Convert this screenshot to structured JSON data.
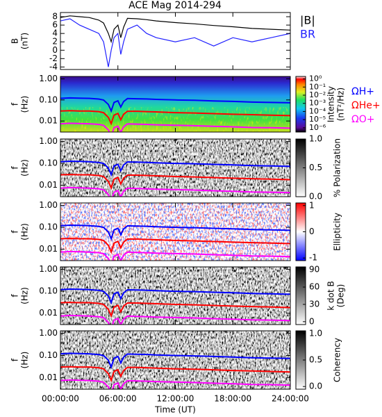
{
  "chart_data": [
    {
      "type": "line",
      "title": "ACE Mag 2014-294",
      "ylabel": [
        "B",
        "(nT)"
      ],
      "x": [
        0,
        1,
        2,
        3,
        4,
        4.5,
        5,
        5.3,
        5.6,
        6,
        6.3,
        6.6,
        7,
        8,
        9,
        10,
        12,
        14,
        16,
        18,
        20,
        22,
        24
      ],
      "series": [
        {
          "name": "|B|",
          "color": "#000000",
          "values": [
            7.8,
            8.2,
            8,
            7.8,
            7.2,
            6.5,
            4,
            2,
            5,
            6,
            3,
            5.5,
            7.6,
            7.5,
            7.3,
            7,
            6.6,
            6.3,
            5.9,
            5.6,
            5.2,
            5,
            4.8
          ]
        },
        {
          "name": "BR",
          "color": "#2020ff",
          "values": [
            7,
            7.5,
            6,
            5,
            4,
            2,
            -4,
            0,
            3,
            4,
            -1,
            2,
            5,
            6,
            4,
            3,
            2,
            3,
            1,
            3,
            2,
            3,
            4
          ]
        }
      ],
      "xlim": [
        0,
        24
      ],
      "xticks": [
        0,
        6,
        12,
        18,
        24
      ],
      "ylim": [
        -4.6,
        9
      ],
      "yticks": [
        -4,
        -2,
        0,
        2,
        4,
        6,
        8
      ]
    },
    {
      "type": "spectrogram",
      "colormap": "rainbow",
      "ylabel": [
        "f",
        "(Hz)"
      ],
      "yscale": "log",
      "ylim": [
        0.003,
        1.3
      ],
      "yticks": [
        {
          "value": 1,
          "label": "1.00"
        },
        {
          "value": 0.1,
          "label": "0.10"
        },
        0.01
      ],
      "xlim": [
        0,
        24
      ],
      "xticks": [
        0,
        6,
        12,
        18,
        24
      ],
      "x": [
        0,
        1,
        2,
        3,
        4,
        4.5,
        5,
        5.3,
        5.6,
        6,
        6.3,
        6.6,
        7,
        8,
        9,
        10,
        12,
        14,
        16,
        18,
        20,
        22,
        24
      ],
      "series": [
        {
          "name": "ΩH+",
          "color": "#0000ff",
          "values": [
            0.119,
            0.125,
            0.122,
            0.119,
            0.11,
            0.099,
            0.061,
            0.03,
            0.076,
            0.091,
            0.046,
            0.084,
            0.116,
            0.114,
            0.111,
            0.106,
            0.1,
            0.096,
            0.09,
            0.085,
            0.079,
            0.076,
            0.073
          ]
        },
        {
          "name": "ΩHe+",
          "color": "#ff0000",
          "values": [
            0.03,
            0.031,
            0.03,
            0.03,
            0.028,
            0.025,
            0.015,
            0.0075,
            0.019,
            0.023,
            0.0115,
            0.021,
            0.029,
            0.029,
            0.028,
            0.027,
            0.025,
            0.024,
            0.0225,
            0.021,
            0.02,
            0.019,
            0.018
          ]
        },
        {
          "name": "ΩO+",
          "color": "#ff00ff",
          "values": [
            0.0074,
            0.0078,
            0.0076,
            0.0074,
            0.0069,
            0.0062,
            0.0038,
            0.0019,
            0.0048,
            0.0057,
            0.0029,
            0.0053,
            0.0073,
            0.0071,
            0.0069,
            0.0066,
            0.0063,
            0.006,
            0.0056,
            0.0053,
            0.0049,
            0.0048,
            0.0046
          ]
        }
      ],
      "colorbar": {
        "label": [
          "Intensity",
          "(nT²/Hz)"
        ],
        "scale": "log",
        "lim": [
          3e-07,
          2
        ],
        "ticks": [
          {
            "value": 1,
            "label": "10⁰"
          },
          {
            "value": 0.1,
            "label": "10⁻¹"
          },
          {
            "value": 0.01,
            "label": "10⁻²"
          },
          {
            "value": 0.001,
            "label": "10⁻³"
          },
          {
            "value": 0.0001,
            "label": "10⁻⁴"
          },
          {
            "value": 1e-05,
            "label": "10⁻⁵"
          },
          {
            "value": 1e-06,
            "label": "10⁻⁶"
          }
        ]
      }
    },
    {
      "type": "spectrogram",
      "colormap": "gray",
      "ylabel": [
        "f",
        "(Hz)"
      ],
      "yscale": "log",
      "ylim": [
        0.003,
        1.3
      ],
      "yticks": [
        {
          "value": 1,
          "label": "1.00"
        },
        {
          "value": 0.1,
          "label": "0.10"
        },
        0.01
      ],
      "xlim": [
        0,
        24
      ],
      "xticks": [
        0,
        6,
        12,
        18,
        24
      ],
      "colorbar": {
        "label": [
          "% Polarization"
        ],
        "lim": [
          0,
          1
        ],
        "ticks": [
          {
            "value": 0,
            "label": "0.0"
          },
          0.5,
          {
            "value": 1,
            "label": "1.0"
          }
        ]
      }
    },
    {
      "type": "spectrogram",
      "colormap": "red-blue",
      "ylabel": [
        "f",
        "(Hz)"
      ],
      "yscale": "log",
      "ylim": [
        0.003,
        1.3
      ],
      "yticks": [
        {
          "value": 1,
          "label": "1.00"
        },
        {
          "value": 0.1,
          "label": "0.10"
        },
        0.01
      ],
      "xlim": [
        0,
        24
      ],
      "xticks": [
        0,
        6,
        12,
        18,
        24
      ],
      "colorbar": {
        "label": [
          "Ellipticity"
        ],
        "lim": [
          -1.1,
          1.1
        ],
        "ticks": [
          -1,
          0,
          1
        ]
      }
    },
    {
      "type": "spectrogram",
      "colormap": "gray",
      "ylabel": [
        "f",
        "(Hz)"
      ],
      "yscale": "log",
      "ylim": [
        0.003,
        1.3
      ],
      "yticks": [
        {
          "value": 1,
          "label": "1.00"
        },
        {
          "value": 0.1,
          "label": "0.10"
        },
        0.01
      ],
      "xlim": [
        0,
        24
      ],
      "xticks": [
        0,
        6,
        12,
        18,
        24
      ],
      "colorbar": {
        "label": [
          "k dot B",
          "(Deg)"
        ],
        "lim": [
          -5,
          95
        ],
        "ticks": [
          0,
          30,
          60,
          90
        ]
      }
    },
    {
      "type": "spectrogram",
      "colormap": "gray",
      "ylabel": [
        "f",
        "(Hz)"
      ],
      "yscale": "log",
      "ylim": [
        0.003,
        1.3
      ],
      "yticks": [
        {
          "value": 1,
          "label": "1.00"
        },
        {
          "value": 0.1,
          "label": "0.10"
        },
        0.01
      ],
      "xlim": [
        0,
        24
      ],
      "xlabel": "Time (UT)",
      "xticks": [
        {
          "value": 0,
          "label": "00:00:00"
        },
        {
          "value": 6,
          "label": "06:00:00"
        },
        {
          "value": 12,
          "label": "12:00:00"
        },
        {
          "value": 18,
          "label": "18:00:00"
        },
        {
          "value": 24,
          "label": "24:00:00"
        }
      ],
      "colorbar": {
        "label": [
          "Coherency"
        ],
        "lim": [
          -0.05,
          1.05
        ],
        "ticks": [
          {
            "value": 0,
            "label": "0.0"
          },
          0.5,
          {
            "value": 1,
            "label": "1.0"
          }
        ]
      }
    }
  ]
}
